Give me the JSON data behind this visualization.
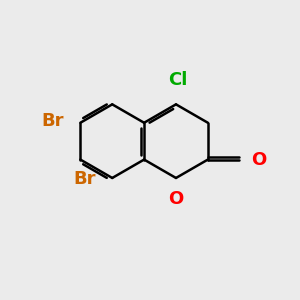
{
  "background_color": "#ebebeb",
  "bond_color": "#000000",
  "bond_width": 1.8,
  "atom_colors": {
    "Cl": "#00aa00",
    "Br": "#cc6600",
    "O": "#ff0000"
  },
  "atom_fontsizes": {
    "Cl": 13,
    "Br": 13,
    "O": 13
  },
  "bl": 1.25
}
